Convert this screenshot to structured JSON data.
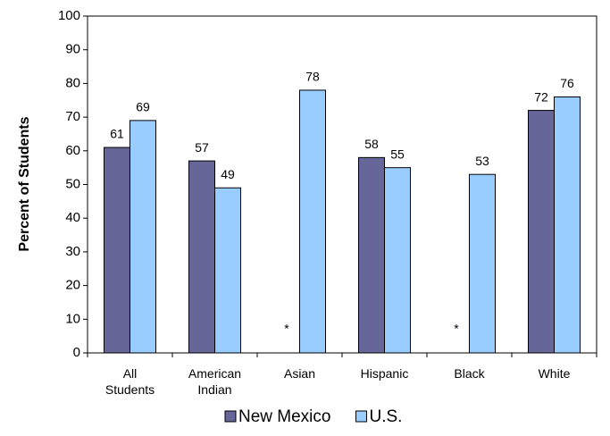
{
  "chart_data": {
    "type": "bar",
    "y_label": "Percent of Students",
    "categories": [
      "All Students",
      "American Indian",
      "Asian",
      "Hispanic",
      "Black",
      "White"
    ],
    "series": [
      {
        "name": "New Mexico",
        "color": "#666699",
        "values": [
          61,
          57,
          null,
          58,
          null,
          72
        ],
        "value_labels": [
          "61",
          "57",
          "*",
          "58",
          "*",
          "72"
        ]
      },
      {
        "name": "U.S.",
        "color": "#99ccff",
        "values": [
          69,
          49,
          78,
          55,
          53,
          76
        ]
      }
    ],
    "ylim": [
      0,
      100
    ],
    "yticks": [
      0,
      10,
      20,
      30,
      40,
      50,
      60,
      70,
      80,
      90,
      100
    ],
    "grid": false,
    "legend": "bottom"
  }
}
